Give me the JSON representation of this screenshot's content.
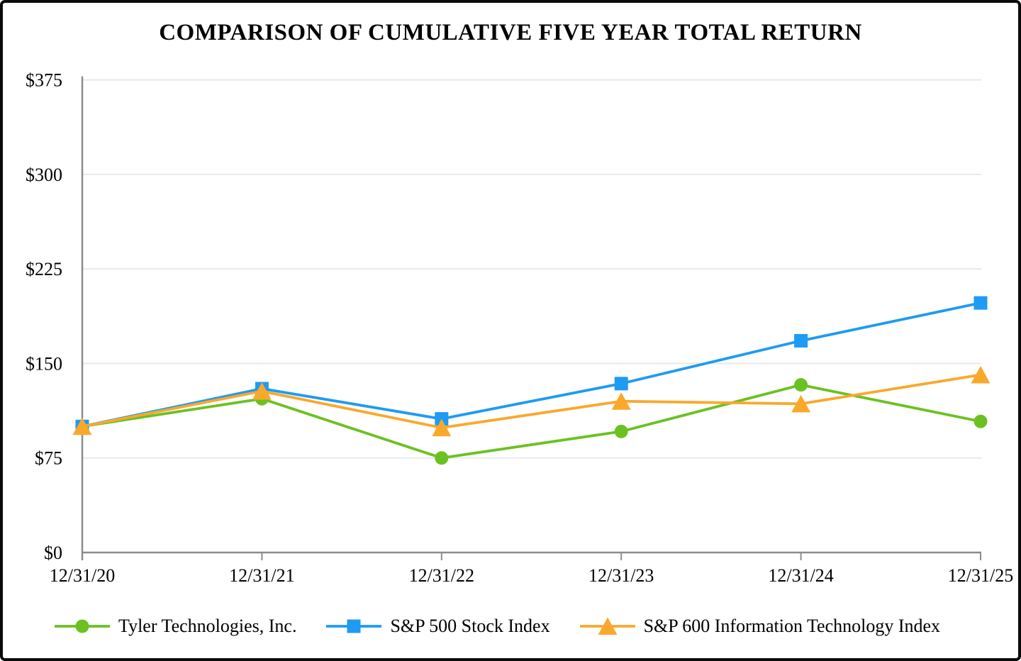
{
  "title": "COMPARISON OF CUMULATIVE FIVE YEAR TOTAL RETURN",
  "chart_data": {
    "type": "line",
    "title": "COMPARISON OF CUMULATIVE FIVE YEAR TOTAL RETURN",
    "categories": [
      "12/31/20",
      "12/31/21",
      "12/31/22",
      "12/31/23",
      "12/31/24",
      "12/31/25"
    ],
    "series": [
      {
        "name": "Tyler Technologies, Inc.",
        "marker": "circle",
        "color": "#6CC122",
        "values": [
          100,
          122,
          75,
          96,
          133,
          104
        ]
      },
      {
        "name": "S&P 500 Stock Index",
        "marker": "square",
        "color": "#1E9BF2",
        "values": [
          100,
          130,
          106,
          134,
          168,
          198
        ]
      },
      {
        "name": "S&P 600 Information Technology Index",
        "marker": "triangle",
        "color": "#F9A82C",
        "values": [
          100,
          128,
          99,
          120,
          118,
          141
        ]
      }
    ],
    "y_ticks": [
      "$0",
      "$75",
      "$150",
      "$225",
      "$300",
      "$375"
    ],
    "y_tick_values": [
      0,
      75,
      150,
      225,
      300,
      375
    ],
    "ylim": [
      0,
      375
    ],
    "grid": "horizontal",
    "grid_color": "#E9E9E9",
    "axis_color": "#8C8C8C",
    "text_color": "#000000",
    "legend_position": "bottom"
  }
}
